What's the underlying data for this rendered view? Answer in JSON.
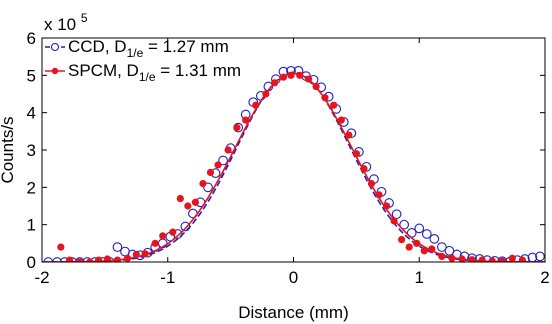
{
  "chart_data": {
    "type": "scatter",
    "xlabel": "Distance (mm)",
    "ylabel": "Counts/s",
    "exponent_label": "x 10",
    "exponent_power": "5",
    "xlim": [
      -2,
      2
    ],
    "ylim": [
      0,
      600000
    ],
    "xticks": [
      -2,
      -1,
      0,
      1,
      2
    ],
    "yticks": [
      0,
      100000,
      200000,
      300000,
      400000,
      500000,
      600000
    ],
    "xtick_labels": [
      "-2",
      "-1",
      "0",
      "1",
      "2"
    ],
    "ytick_labels": [
      "0",
      "1",
      "2",
      "3",
      "4",
      "5",
      "6"
    ],
    "grid": false,
    "legend_position": "top-left",
    "series": [
      {
        "name_prefix": "CCD, D",
        "name_sub": "1/e",
        "name_suffix": " = 1.27 mm",
        "color": "#1f1fbf",
        "marker": "open-circle",
        "line_style": "dashed",
        "fit_amplitude": 508000,
        "fit_width": 0.635,
        "points": [
          [
            -1.95,
            0
          ],
          [
            -1.88,
            0
          ],
          [
            -1.82,
            0
          ],
          [
            -1.76,
            0
          ],
          [
            -1.7,
            0
          ],
          [
            -1.64,
            0
          ],
          [
            -1.58,
            0
          ],
          [
            -1.52,
            0
          ],
          [
            -1.46,
            0
          ],
          [
            -1.4,
            40000
          ],
          [
            -1.34,
            28000
          ],
          [
            -1.28,
            20000
          ],
          [
            -1.22,
            18000
          ],
          [
            -1.16,
            25000
          ],
          [
            -1.1,
            40000
          ],
          [
            -1.04,
            50000
          ],
          [
            -0.98,
            68000
          ],
          [
            -0.92,
            75000
          ],
          [
            -0.86,
            95000
          ],
          [
            -0.8,
            130000
          ],
          [
            -0.74,
            160000
          ],
          [
            -0.68,
            200000
          ],
          [
            -0.62,
            238000
          ],
          [
            -0.56,
            272000
          ],
          [
            -0.5,
            305000
          ],
          [
            -0.44,
            360000
          ],
          [
            -0.38,
            395000
          ],
          [
            -0.32,
            428000
          ],
          [
            -0.26,
            445000
          ],
          [
            -0.2,
            470000
          ],
          [
            -0.14,
            490000
          ],
          [
            -0.08,
            510000
          ],
          [
            -0.02,
            512000
          ],
          [
            0.04,
            512000
          ],
          [
            0.1,
            498000
          ],
          [
            0.16,
            488000
          ],
          [
            0.22,
            468000
          ],
          [
            0.28,
            443000
          ],
          [
            0.34,
            410000
          ],
          [
            0.4,
            375000
          ],
          [
            0.46,
            345000
          ],
          [
            0.52,
            295000
          ],
          [
            0.58,
            255000
          ],
          [
            0.64,
            222000
          ],
          [
            0.7,
            188000
          ],
          [
            0.76,
            158000
          ],
          [
            0.82,
            128000
          ],
          [
            0.88,
            100000
          ],
          [
            0.94,
            78000
          ],
          [
            1.0,
            90000
          ],
          [
            1.06,
            75000
          ],
          [
            1.12,
            62000
          ],
          [
            1.18,
            40000
          ],
          [
            1.24,
            30000
          ],
          [
            1.3,
            20000
          ],
          [
            1.36,
            15000
          ],
          [
            1.42,
            10000
          ],
          [
            1.48,
            8000
          ],
          [
            1.54,
            5000
          ],
          [
            1.6,
            3000
          ],
          [
            1.66,
            2000
          ],
          [
            1.72,
            1000
          ],
          [
            1.78,
            5000
          ],
          [
            1.84,
            8000
          ],
          [
            1.9,
            12000
          ],
          [
            1.96,
            15000
          ]
        ]
      },
      {
        "name_prefix": "SPCM, D",
        "name_sub": "1/e",
        "name_suffix": " = 1.31 mm",
        "color": "#e8141b",
        "marker": "filled-circle",
        "line_style": "solid",
        "fit_amplitude": 505000,
        "fit_width": 0.655,
        "points": [
          [
            -1.85,
            40000
          ],
          [
            -1.78,
            5000
          ],
          [
            -1.7,
            0
          ],
          [
            -1.62,
            0
          ],
          [
            -1.55,
            5000
          ],
          [
            -1.48,
            8000
          ],
          [
            -1.4,
            5000
          ],
          [
            -1.32,
            10000
          ],
          [
            -1.25,
            20000
          ],
          [
            -1.18,
            22000
          ],
          [
            -1.1,
            50000
          ],
          [
            -1.04,
            70000
          ],
          [
            -0.96,
            80000
          ],
          [
            -0.9,
            170000
          ],
          [
            -0.84,
            150000
          ],
          [
            -0.78,
            160000
          ],
          [
            -0.72,
            210000
          ],
          [
            -0.66,
            240000
          ],
          [
            -0.6,
            260000
          ],
          [
            -0.52,
            300000
          ],
          [
            -0.45,
            360000
          ],
          [
            -0.38,
            380000
          ],
          [
            -0.3,
            420000
          ],
          [
            -0.22,
            450000
          ],
          [
            -0.15,
            480000
          ],
          [
            -0.08,
            495000
          ],
          [
            -0.02,
            500000
          ],
          [
            0.05,
            500000
          ],
          [
            0.12,
            490000
          ],
          [
            0.18,
            470000
          ],
          [
            0.25,
            440000
          ],
          [
            0.32,
            420000
          ],
          [
            0.38,
            380000
          ],
          [
            0.44,
            340000
          ],
          [
            0.5,
            290000
          ],
          [
            0.56,
            250000
          ],
          [
            0.62,
            210000
          ],
          [
            0.68,
            180000
          ],
          [
            0.74,
            150000
          ],
          [
            0.8,
            110000
          ],
          [
            0.86,
            60000
          ],
          [
            0.92,
            40000
          ],
          [
            0.98,
            50000
          ],
          [
            1.04,
            30000
          ],
          [
            1.1,
            35000
          ],
          [
            1.18,
            15000
          ],
          [
            1.26,
            10000
          ],
          [
            1.34,
            8000
          ],
          [
            1.42,
            6000
          ],
          [
            1.5,
            5000
          ],
          [
            1.58,
            3000
          ],
          [
            1.66,
            2000
          ],
          [
            1.74,
            10000
          ],
          [
            1.82,
            5000
          ],
          [
            1.9,
            -10000
          ]
        ]
      }
    ]
  }
}
